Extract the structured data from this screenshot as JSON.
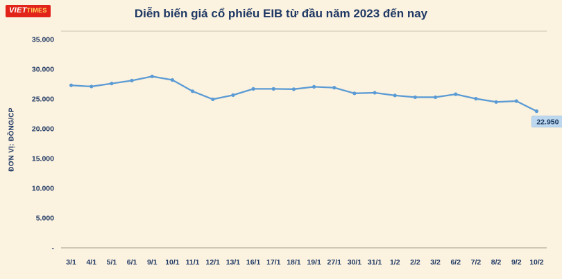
{
  "logo": {
    "text_main": "VIET",
    "text_sub": "TIMES",
    "bg_color": "#E2231A"
  },
  "header": {
    "title": "Diễn biến giá cổ phiếu EIB từ đầu năm 2023 đến nay"
  },
  "chart_data": {
    "type": "line",
    "title": "Diễn biến giá cổ phiếu EIB từ đầu năm 2023 đến nay",
    "ylabel": "ĐƠN VỊ: ĐỒNG/CP",
    "xlabel": "",
    "categories": [
      "3/1",
      "4/1",
      "5/1",
      "6/1",
      "9/1",
      "10/1",
      "11/1",
      "12/1",
      "13/1",
      "16/1",
      "17/1",
      "18/1",
      "19/1",
      "27/1",
      "30/1",
      "31/1",
      "1/2",
      "2/2",
      "3/2",
      "6/2",
      "7/2",
      "8/2",
      "9/2",
      "10/2"
    ],
    "values": [
      27300,
      27100,
      27600,
      28100,
      28800,
      28200,
      26300,
      24950,
      25650,
      26700,
      26700,
      26650,
      27050,
      26900,
      25950,
      26050,
      25600,
      25300,
      25300,
      25800,
      25050,
      24500,
      24650,
      22950
    ],
    "ylim": [
      0,
      35000
    ],
    "ytick_step": 5000,
    "yticks": [
      {
        "value": 35000,
        "label": "35.000"
      },
      {
        "value": 30000,
        "label": "30.000"
      },
      {
        "value": 25000,
        "label": "25.000"
      },
      {
        "value": 20000,
        "label": "20.000"
      },
      {
        "value": 15000,
        "label": "15.000"
      },
      {
        "value": 10000,
        "label": "10.000"
      },
      {
        "value": 5000,
        "label": "5.000"
      },
      {
        "value": 0,
        "label": "-"
      }
    ],
    "last_point_label": "22.950",
    "legend": "none",
    "grid": "off",
    "line_color": "#5B9BD5",
    "marker_color": "#5B9BD5",
    "label_bg": "#BDD7EE",
    "label_border": "#9DC3E6",
    "text_color": "#1F3864",
    "background": "#FBF2DF"
  }
}
